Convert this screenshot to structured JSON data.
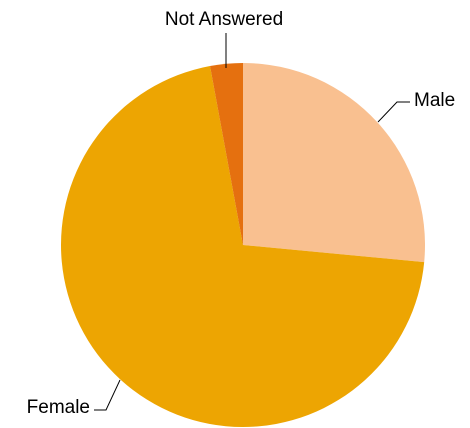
{
  "chart_data": {
    "type": "pie",
    "categories": [
      "Male",
      "Female",
      "Not Answered"
    ],
    "values": [
      26.5,
      70.6,
      2.9
    ],
    "colors": [
      "#F9C090",
      "#EDA502",
      "#E5700F"
    ]
  }
}
